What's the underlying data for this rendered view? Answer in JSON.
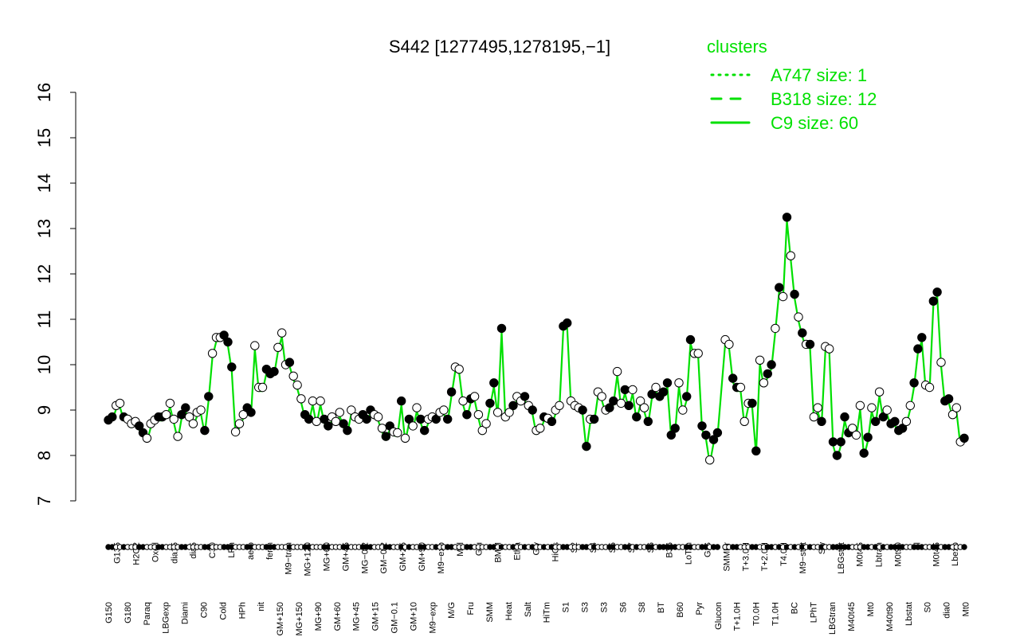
{
  "chart_data": {
    "type": "line",
    "title": "S442 [1277495,1278195,−1]",
    "xlabel": "",
    "ylabel": "",
    "ylim": [
      7,
      16
    ],
    "y_ticks": [
      "7",
      "8",
      "9",
      "10",
      "11",
      "12",
      "13",
      "14",
      "15",
      "16"
    ],
    "grid": false,
    "legend_position": "top-right",
    "legend_title": "clusters",
    "legend": [
      {
        "label": "A747 size: 1",
        "style": "dotted",
        "color": "#00e000"
      },
      {
        "label": "B318 size: 12",
        "style": "dashed",
        "color": "#00e000"
      },
      {
        "label": "C9 size: 60",
        "style": "solid",
        "color": "#00e000"
      }
    ],
    "line_color": "#00e000",
    "top_tick_labels": [
      "G135",
      "H2O2",
      "Oxctl",
      "dia15",
      "dia5",
      "C30",
      "LPh",
      "aero",
      "ferm",
      "M9−tran",
      "MG+120",
      "MG+60",
      "GM+45",
      "MG−0.2",
      "GM−0.2",
      "GM+25",
      "GM+90",
      "M9−exp",
      "Mal",
      "Glu",
      "BMM",
      "Etha",
      "Gly",
      "HiOs",
      "S2",
      "S4",
      "S5",
      "S7",
      "S6",
      "B36",
      "LoTm",
      "G/S",
      "SMMPr",
      "T+3.0H",
      "T+2.0H",
      "T4.0H",
      "M9−stat",
      "Sw",
      "LBGstat",
      "M0t45",
      "Lbtran",
      "M0t90",
      "Bl",
      "M0t45",
      "Lbexp"
    ],
    "bottom_tick_labels": [
      "G150",
      "G180",
      "Paraq",
      "LBGexp",
      "Diami",
      "C90",
      "Cold",
      "HPh",
      "nit",
      "GM+150",
      "MG+150",
      "MG+90",
      "GM+60",
      "MG+45",
      "GM+15",
      "GM−0.1",
      "GM+10",
      "M9−exp",
      "M/G",
      "Fru",
      "SMM",
      "Heat",
      "Salt",
      "HiTm",
      "S1",
      "S3",
      "S3",
      "S6",
      "S8",
      "BT",
      "B60",
      "Pyr",
      "Glucon",
      "T+1.0H",
      "T0.0H",
      "T1.0H",
      "BC",
      "LPhT",
      "LBGtran",
      "M40t45",
      "Mt0",
      "M40t90",
      "Lbstat",
      "S0",
      "dia0",
      "Mt0"
    ],
    "points": [
      [
        0.0,
        8.78,
        1
      ],
      [
        0.5,
        8.85,
        1
      ],
      [
        1.0,
        9.1,
        0
      ],
      [
        1.5,
        9.15,
        0
      ],
      [
        2.0,
        8.85,
        1
      ],
      [
        2.5,
        8.8,
        0
      ],
      [
        3.0,
        8.7,
        0
      ],
      [
        3.5,
        8.75,
        0
      ],
      [
        4.0,
        8.65,
        1
      ],
      [
        4.5,
        8.5,
        1
      ],
      [
        5.0,
        8.38,
        0
      ],
      [
        5.5,
        8.7,
        0
      ],
      [
        6.0,
        8.78,
        0
      ],
      [
        6.5,
        8.85,
        1
      ],
      [
        7.0,
        8.85,
        1
      ],
      [
        7.5,
        8.9,
        0
      ],
      [
        8.0,
        9.15,
        0
      ],
      [
        8.5,
        8.8,
        0
      ],
      [
        9.0,
        8.42,
        0
      ],
      [
        9.5,
        8.9,
        1
      ],
      [
        10.0,
        9.05,
        1
      ],
      [
        10.5,
        8.85,
        0
      ],
      [
        11.0,
        8.7,
        0
      ],
      [
        11.5,
        8.95,
        0
      ],
      [
        12.0,
        9.0,
        0
      ],
      [
        12.5,
        8.55,
        1
      ],
      [
        13.0,
        9.3,
        1
      ],
      [
        13.5,
        10.25,
        0
      ],
      [
        14.0,
        10.6,
        0
      ],
      [
        14.5,
        10.6,
        0
      ],
      [
        15.0,
        10.65,
        1
      ],
      [
        15.5,
        10.5,
        1
      ],
      [
        16.0,
        9.95,
        1
      ],
      [
        16.5,
        8.52,
        0
      ],
      [
        17.0,
        8.7,
        0
      ],
      [
        17.5,
        8.9,
        0
      ],
      [
        18.0,
        9.05,
        1
      ],
      [
        18.5,
        8.95,
        1
      ],
      [
        19.0,
        10.42,
        0
      ],
      [
        19.5,
        9.5,
        0
      ],
      [
        20.0,
        9.5,
        0
      ],
      [
        20.5,
        9.9,
        1
      ],
      [
        21.0,
        9.8,
        1
      ],
      [
        21.5,
        9.85,
        1
      ],
      [
        22.0,
        10.38,
        0
      ],
      [
        22.5,
        10.7,
        0
      ],
      [
        23.0,
        10.0,
        0
      ],
      [
        23.5,
        10.05,
        1
      ],
      [
        24.0,
        9.75,
        0
      ],
      [
        24.5,
        9.55,
        0
      ],
      [
        25.0,
        9.25,
        0
      ],
      [
        25.5,
        8.9,
        1
      ],
      [
        26.0,
        8.8,
        1
      ],
      [
        26.5,
        9.2,
        0
      ],
      [
        27.0,
        8.75,
        0
      ],
      [
        27.5,
        9.2,
        0
      ],
      [
        28.0,
        8.8,
        1
      ],
      [
        28.5,
        8.65,
        1
      ],
      [
        29.0,
        8.85,
        0
      ],
      [
        29.5,
        8.75,
        0
      ],
      [
        30.0,
        8.95,
        0
      ],
      [
        30.5,
        8.7,
        1
      ],
      [
        31.0,
        8.55,
        1
      ],
      [
        31.5,
        9.0,
        0
      ],
      [
        32.0,
        8.85,
        0
      ],
      [
        32.5,
        8.8,
        0
      ],
      [
        33.0,
        8.9,
        1
      ],
      [
        33.5,
        8.8,
        1
      ],
      [
        34.0,
        9.0,
        1
      ],
      [
        34.5,
        8.9,
        0
      ],
      [
        35.0,
        8.85,
        0
      ],
      [
        35.5,
        8.6,
        0
      ],
      [
        36.0,
        8.42,
        1
      ],
      [
        36.5,
        8.65,
        1
      ],
      [
        37.0,
        8.52,
        0
      ],
      [
        37.5,
        8.5,
        0
      ],
      [
        38.0,
        9.2,
        1
      ],
      [
        38.5,
        8.38,
        0
      ],
      [
        39.0,
        8.8,
        1
      ],
      [
        39.5,
        8.65,
        0
      ],
      [
        40.0,
        9.05,
        0
      ],
      [
        40.5,
        8.8,
        1
      ],
      [
        41.0,
        8.55,
        1
      ],
      [
        41.5,
        8.8,
        0
      ],
      [
        42.0,
        8.85,
        0
      ],
      [
        42.5,
        8.8,
        1
      ],
      [
        43.0,
        8.95,
        0
      ],
      [
        43.5,
        9.0,
        0
      ],
      [
        44.0,
        8.8,
        1
      ],
      [
        44.5,
        9.4,
        1
      ],
      [
        45.0,
        9.95,
        0
      ],
      [
        45.5,
        9.9,
        0
      ],
      [
        46.0,
        9.2,
        0
      ],
      [
        46.5,
        8.9,
        1
      ],
      [
        47.0,
        9.25,
        1
      ],
      [
        47.5,
        9.3,
        0
      ],
      [
        48.0,
        8.9,
        0
      ],
      [
        48.5,
        8.55,
        0
      ],
      [
        49.0,
        8.7,
        0
      ],
      [
        49.5,
        9.15,
        1
      ],
      [
        50.0,
        9.6,
        1
      ],
      [
        50.5,
        8.95,
        0
      ],
      [
        51.0,
        10.8,
        1
      ],
      [
        51.5,
        8.85,
        0
      ],
      [
        52.0,
        8.95,
        0
      ],
      [
        52.5,
        9.1,
        1
      ],
      [
        53.0,
        9.3,
        0
      ],
      [
        53.5,
        9.2,
        0
      ],
      [
        54.0,
        9.3,
        1
      ],
      [
        54.5,
        9.1,
        0
      ],
      [
        55.0,
        9.0,
        1
      ],
      [
        55.5,
        8.55,
        0
      ],
      [
        56.0,
        8.6,
        0
      ],
      [
        56.5,
        8.85,
        1
      ],
      [
        57.0,
        8.82,
        0
      ],
      [
        57.5,
        8.75,
        1
      ],
      [
        58.0,
        9.0,
        0
      ],
      [
        58.5,
        9.1,
        0
      ],
      [
        59.0,
        10.85,
        1
      ],
      [
        59.5,
        10.92,
        1
      ],
      [
        60.0,
        9.2,
        0
      ],
      [
        60.5,
        9.1,
        0
      ],
      [
        61.0,
        9.05,
        0
      ],
      [
        61.5,
        9.0,
        1
      ],
      [
        62.0,
        8.2,
        1
      ],
      [
        62.5,
        8.8,
        0
      ],
      [
        63.0,
        8.8,
        1
      ],
      [
        63.5,
        9.4,
        0
      ],
      [
        64.0,
        9.3,
        0
      ],
      [
        64.5,
        9.0,
        0
      ],
      [
        65.0,
        9.05,
        1
      ],
      [
        65.5,
        9.2,
        1
      ],
      [
        66.0,
        9.85,
        0
      ],
      [
        66.5,
        9.15,
        0
      ],
      [
        67.0,
        9.45,
        1
      ],
      [
        67.5,
        9.1,
        1
      ],
      [
        68.0,
        9.45,
        0
      ],
      [
        68.5,
        8.85,
        1
      ],
      [
        69.0,
        9.2,
        0
      ],
      [
        69.5,
        9.05,
        0
      ],
      [
        70.0,
        8.75,
        1
      ],
      [
        70.5,
        9.35,
        1
      ],
      [
        71.0,
        9.5,
        0
      ],
      [
        71.5,
        9.3,
        1
      ],
      [
        72.0,
        9.4,
        1
      ],
      [
        72.5,
        9.6,
        1
      ],
      [
        73.0,
        8.45,
        1
      ],
      [
        73.5,
        8.6,
        1
      ],
      [
        74.0,
        9.6,
        0
      ],
      [
        74.5,
        9.0,
        0
      ],
      [
        75.0,
        9.3,
        1
      ],
      [
        75.5,
        10.55,
        1
      ],
      [
        76.0,
        10.25,
        0
      ],
      [
        76.5,
        10.25,
        0
      ],
      [
        77.0,
        8.65,
        1
      ],
      [
        77.5,
        8.45,
        1
      ],
      [
        78.0,
        7.9,
        0
      ],
      [
        78.5,
        8.35,
        1
      ],
      [
        79.0,
        8.5,
        1
      ],
      [
        80.0,
        10.55,
        0
      ],
      [
        80.5,
        10.45,
        0
      ],
      [
        81.0,
        9.7,
        1
      ],
      [
        81.5,
        9.5,
        1
      ],
      [
        82.0,
        9.5,
        0
      ],
      [
        82.5,
        8.75,
        0
      ],
      [
        83.0,
        9.15,
        0
      ],
      [
        83.5,
        9.15,
        1
      ],
      [
        84.0,
        8.1,
        1
      ],
      [
        84.5,
        10.1,
        0
      ],
      [
        85.0,
        9.6,
        0
      ],
      [
        85.5,
        9.8,
        1
      ],
      [
        86.0,
        10.0,
        1
      ],
      [
        86.5,
        10.8,
        0
      ],
      [
        87.0,
        11.7,
        1
      ],
      [
        87.5,
        11.5,
        0
      ],
      [
        88.0,
        13.25,
        1
      ],
      [
        88.5,
        12.4,
        0
      ],
      [
        89.0,
        11.55,
        1
      ],
      [
        89.5,
        11.05,
        0
      ],
      [
        90.0,
        10.7,
        1
      ],
      [
        90.5,
        10.45,
        0
      ],
      [
        91.0,
        10.45,
        1
      ],
      [
        91.5,
        8.85,
        0
      ],
      [
        92.0,
        9.05,
        0
      ],
      [
        92.5,
        8.75,
        1
      ],
      [
        93.0,
        10.4,
        0
      ],
      [
        93.5,
        10.35,
        0
      ],
      [
        94.0,
        8.3,
        1
      ],
      [
        94.5,
        8.0,
        1
      ],
      [
        95.0,
        8.3,
        1
      ],
      [
        95.5,
        8.85,
        1
      ],
      [
        96.0,
        8.5,
        1
      ],
      [
        96.5,
        8.6,
        0
      ],
      [
        97.0,
        8.45,
        0
      ],
      [
        97.5,
        9.1,
        0
      ],
      [
        98.0,
        8.05,
        1
      ],
      [
        98.5,
        8.4,
        1
      ],
      [
        99.0,
        9.05,
        0
      ],
      [
        99.5,
        8.75,
        1
      ],
      [
        100.0,
        9.4,
        0
      ],
      [
        100.5,
        8.85,
        1
      ],
      [
        101.0,
        9.0,
        0
      ],
      [
        101.5,
        8.7,
        1
      ],
      [
        102.0,
        8.75,
        1
      ],
      [
        102.5,
        8.55,
        1
      ],
      [
        103.0,
        8.6,
        1
      ],
      [
        103.5,
        8.75,
        0
      ],
      [
        104.0,
        9.1,
        0
      ],
      [
        104.5,
        9.6,
        1
      ],
      [
        105.0,
        10.35,
        1
      ],
      [
        105.5,
        10.6,
        1
      ],
      [
        106.0,
        9.55,
        0
      ],
      [
        106.5,
        9.5,
        0
      ],
      [
        107.0,
        11.4,
        1
      ],
      [
        107.5,
        11.6,
        1
      ],
      [
        108.0,
        10.05,
        0
      ],
      [
        108.5,
        9.2,
        1
      ],
      [
        109.0,
        9.25,
        1
      ],
      [
        109.5,
        8.9,
        0
      ],
      [
        110.0,
        9.05,
        0
      ],
      [
        110.5,
        8.3,
        0
      ],
      [
        111.0,
        8.38,
        1
      ]
    ]
  }
}
